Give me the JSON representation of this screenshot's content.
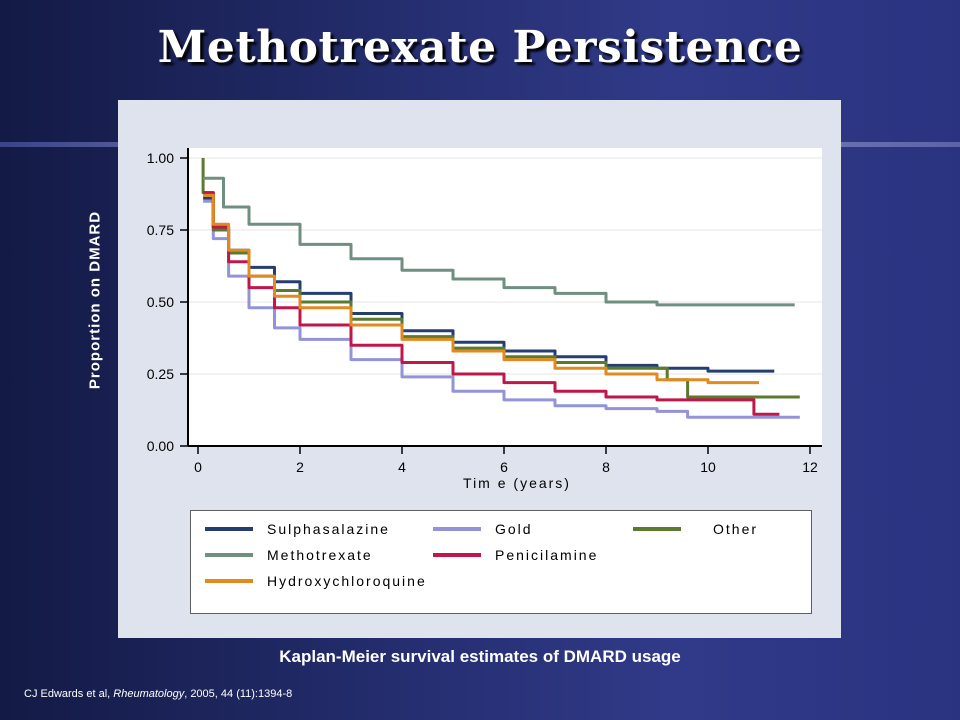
{
  "slide": {
    "title": "Methotrexate Persistence",
    "caption": "Kaplan-Meier survival estimates of DMARD usage",
    "citation": {
      "authors": "CJ Edwards et al, ",
      "journal": "Rheumatology",
      "details": ", 2005, 44 (11):1394-8"
    }
  },
  "chart_data": {
    "type": "line",
    "title": "",
    "xlabel": "Tim e (years)",
    "ylabel": "Proportion on DMARD",
    "xlim": [
      0,
      12
    ],
    "ylim": [
      0,
      1
    ],
    "x_ticks": [
      "0",
      "2",
      "4",
      "6",
      "8",
      "10",
      "12"
    ],
    "y_ticks": [
      "0.00",
      "0.25",
      "0.50",
      "0.75",
      "1.00"
    ],
    "grid": "horizontal",
    "legend": "bottom",
    "series": [
      {
        "name": "Sulphasalazine",
        "color": "#253e70",
        "x": [
          0.1,
          0.3,
          0.6,
          1.0,
          1.5,
          2.0,
          3.0,
          4.0,
          5.0,
          6.0,
          7.0,
          8.0,
          9.0,
          10.0,
          11.3
        ],
        "y": [
          0.86,
          0.76,
          0.68,
          0.62,
          0.57,
          0.53,
          0.46,
          0.4,
          0.36,
          0.33,
          0.31,
          0.28,
          0.27,
          0.26,
          0.26
        ]
      },
      {
        "name": "Gold",
        "color": "#9393d8",
        "x": [
          0.1,
          0.3,
          0.6,
          1.0,
          1.5,
          2.0,
          3.0,
          4.0,
          5.0,
          6.0,
          7.0,
          8.0,
          9.0,
          9.6,
          10.0,
          11.8
        ],
        "y": [
          0.85,
          0.72,
          0.59,
          0.48,
          0.41,
          0.37,
          0.3,
          0.24,
          0.19,
          0.16,
          0.14,
          0.13,
          0.12,
          0.1,
          0.1,
          0.1
        ]
      },
      {
        "name": "Other",
        "color": "#5a7a30",
        "x": [
          0.1,
          0.1,
          0.3,
          0.6,
          1.0,
          1.5,
          2.0,
          3.0,
          4.0,
          5.0,
          6.0,
          7.0,
          8.0,
          9.2,
          9.6,
          10.0,
          11.8
        ],
        "y": [
          1.0,
          0.88,
          0.75,
          0.67,
          0.59,
          0.54,
          0.5,
          0.44,
          0.38,
          0.34,
          0.31,
          0.29,
          0.27,
          0.23,
          0.17,
          0.17,
          0.17
        ]
      },
      {
        "name": "Methotrexate",
        "color": "#6f8f80",
        "x": [
          0.1,
          0.5,
          1.0,
          2.0,
          3.0,
          4.0,
          5.0,
          6.0,
          7.0,
          8.0,
          9.0,
          10.0,
          11.7
        ],
        "y": [
          0.93,
          0.83,
          0.77,
          0.7,
          0.65,
          0.61,
          0.58,
          0.55,
          0.53,
          0.5,
          0.49,
          0.49,
          0.49
        ]
      },
      {
        "name": "Penicilamine",
        "color": "#c0174a",
        "x": [
          0.1,
          0.3,
          0.6,
          1.0,
          1.5,
          2.0,
          3.0,
          4.0,
          5.0,
          6.0,
          7.0,
          8.0,
          9.0,
          10.0,
          10.9,
          10.9,
          11.4
        ],
        "y": [
          0.88,
          0.76,
          0.64,
          0.55,
          0.48,
          0.42,
          0.35,
          0.29,
          0.25,
          0.22,
          0.19,
          0.17,
          0.16,
          0.16,
          0.16,
          0.11,
          0.11
        ]
      },
      {
        "name": "Hydroxychloroquine",
        "color": "#e08a1f",
        "x": [
          0.1,
          0.3,
          0.6,
          1.0,
          1.5,
          2.0,
          3.0,
          4.0,
          5.0,
          6.0,
          7.0,
          8.0,
          9.0,
          10.0,
          11.0
        ],
        "y": [
          0.87,
          0.77,
          0.68,
          0.59,
          0.52,
          0.48,
          0.42,
          0.37,
          0.33,
          0.3,
          0.27,
          0.25,
          0.23,
          0.22,
          0.22
        ]
      }
    ]
  },
  "legend_layout": [
    {
      "series": 0,
      "col": 0,
      "row": 0
    },
    {
      "series": 1,
      "col": 1,
      "row": 0
    },
    {
      "series": 2,
      "col": 2,
      "row": 0
    },
    {
      "series": 3,
      "col": 0,
      "row": 1
    },
    {
      "series": 4,
      "col": 1,
      "row": 1
    },
    {
      "series": 5,
      "col": 0,
      "row": 2
    }
  ]
}
